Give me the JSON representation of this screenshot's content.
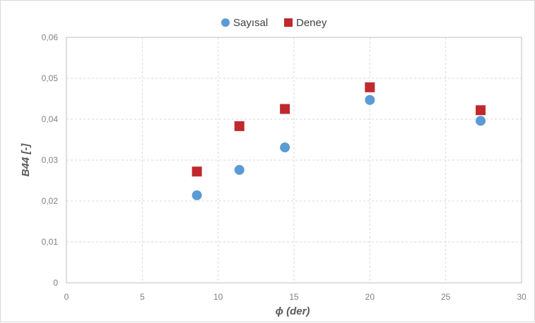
{
  "chart_data": {
    "type": "scatter",
    "xlabel": "ϕ (der)",
    "ylabel": "B44 [-]",
    "xlim": [
      0,
      30
    ],
    "ylim": [
      0,
      0.06
    ],
    "x_ticks": [
      "0",
      "5",
      "10",
      "15",
      "20",
      "25",
      "30"
    ],
    "y_ticks": [
      "0",
      "0,01",
      "0,02",
      "0,03",
      "0,04",
      "0,05",
      "0,06"
    ],
    "grid": true,
    "legend_position": "top",
    "series": [
      {
        "name": "Sayısal",
        "marker": "circle",
        "color": "#5b9bd5",
        "points": [
          [
            8.6,
            0.0214
          ],
          [
            11.4,
            0.0276
          ],
          [
            14.4,
            0.0331
          ],
          [
            20.0,
            0.0447
          ],
          [
            27.3,
            0.0396
          ]
        ]
      },
      {
        "name": "Deney",
        "marker": "square",
        "color": "#c0282d",
        "points": [
          [
            8.6,
            0.0272
          ],
          [
            11.4,
            0.0383
          ],
          [
            14.4,
            0.0425
          ],
          [
            20.0,
            0.0478
          ],
          [
            27.3,
            0.0422
          ]
        ]
      }
    ]
  }
}
